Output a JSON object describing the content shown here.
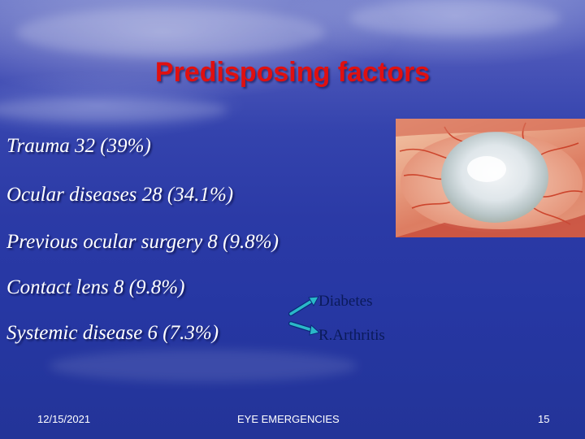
{
  "slide": {
    "title": "Predisposing factors",
    "bullets": [
      "Trauma 32 (39%)",
      "Ocular diseases 28 (34.1%)",
      "Previous ocular surgery 8 (9.8%)",
      "Contact lens  8 (9.8%)",
      "Systemic disease 6 (7.3%)"
    ],
    "systemic_examples": [
      "Diabetes",
      "R.Arthritis"
    ]
  },
  "footer": {
    "date": "12/15/2021",
    "center": "EYE EMERGENCIES",
    "page_number": "15"
  },
  "colors": {
    "title": "#e01010",
    "arrow": "#2ab8c8",
    "label": "#0a1a5a"
  }
}
